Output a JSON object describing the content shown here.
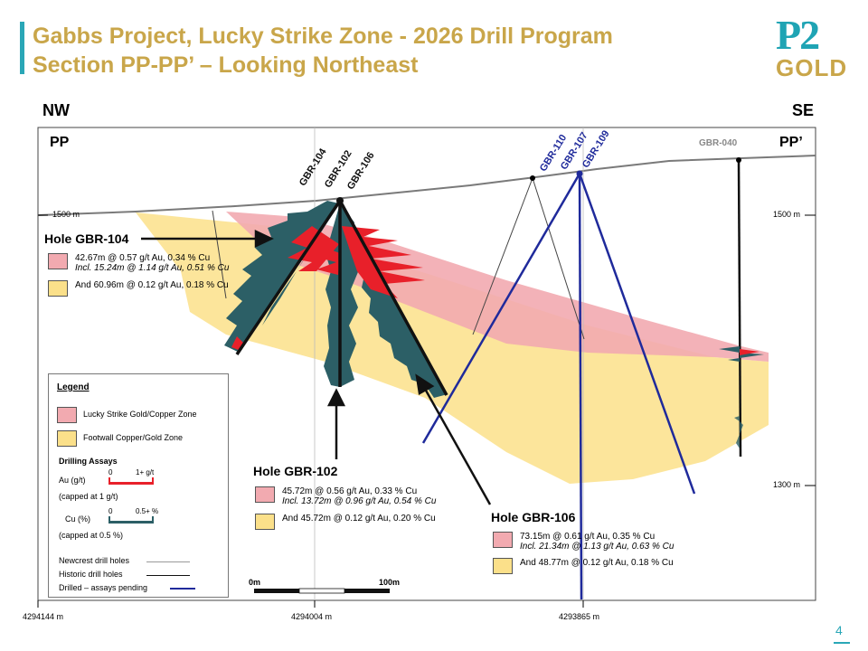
{
  "title": {
    "line1": "Gabbs Project, Lucky Strike Zone - 2026 Drill Program",
    "line2": "Section PP-PP’ – Looking Northeast"
  },
  "logo": {
    "top": "P2",
    "bottom": "GOLD"
  },
  "directions": {
    "left": "NW",
    "right": "SE"
  },
  "section_labels": {
    "left": "PP",
    "right": "PP’"
  },
  "elevations": {
    "upper_left": "1500 m",
    "upper_right": "1500 m",
    "lower_right": "1300 m"
  },
  "coordinates": [
    "4294144 m",
    "4294004 m",
    "4293865 m"
  ],
  "holes": {
    "gbr104": "GBR-104",
    "gbr102": "GBR-102",
    "gbr106": "GBR-106",
    "gbr110": "GBR-110",
    "gbr107": "GBR-107",
    "gbr109": "GBR-109",
    "gbr040": "GBR-040"
  },
  "callouts": {
    "gbr104": {
      "label": "Hole GBR-104",
      "lines": [
        "42.67m @  0.57 g/t Au, 0.34 % Cu",
        "Incl. 15.24m @ 1.14 g/t Au, 0.51 % Cu"
      ],
      "and": "And 60.96m @  0.12 g/t Au, 0.18 % Cu"
    },
    "gbr102": {
      "label": "Hole GBR-102",
      "lines": [
        "45.72m @  0.56 g/t Au, 0.33 % Cu",
        "Incl. 13.72m @ 0.96 g/t Au, 0.54 % Cu"
      ],
      "and": "And 45.72m @  0.12 g/t Au, 0.20 % Cu"
    },
    "gbr106": {
      "label": "Hole GBR-106",
      "lines": [
        "73.15m @  0.61 g/t Au, 0.35 % Cu",
        "Incl. 21.34m @ 1.13 g/t Au, 0.63 % Cu"
      ],
      "and": "And 48.77m @  0.12 g/t Au, 0.18 % Cu"
    }
  },
  "legend": {
    "title": "Legend",
    "zones": [
      "Lucky Strike Gold/Copper Zone",
      "Footwall Copper/Gold Zone"
    ],
    "assays_title": "Drilling Assays",
    "au": {
      "label": "Au (g/t)",
      "min": "0",
      "max": "1+ g/t",
      "cap": "(capped at 1 g/t)"
    },
    "cu": {
      "label": "Cu (%)",
      "min": "0",
      "max": "0.5+ %",
      "cap": "(capped at 0.5 %)"
    },
    "holes": [
      "Newcrest drill holes",
      "Historic drill holes",
      "Drilled – assays pending"
    ]
  },
  "scale_bar": {
    "start": "0m",
    "end": "100m"
  },
  "page_number": "4",
  "colors": {
    "accent_teal": "#2aa7b7",
    "gold": "#c9a64a",
    "gold_zone": "#fbe08a",
    "lucky_strike_zone": "#f2aab0",
    "au_bars": "#e8202a",
    "cu_bars": "#2c5f66",
    "pending_holes": "#1f2a9b"
  }
}
